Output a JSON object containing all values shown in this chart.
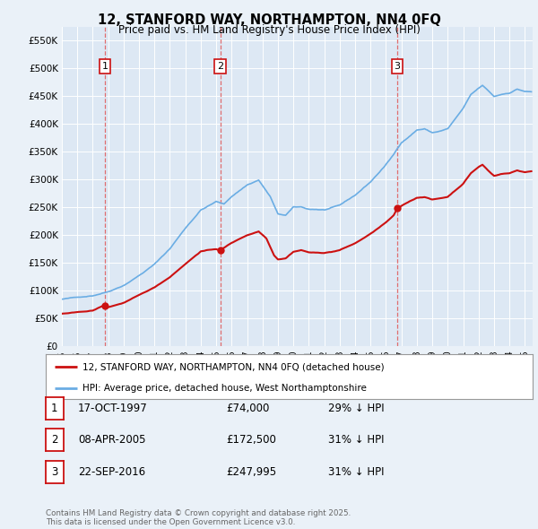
{
  "title": "12, STANFORD WAY, NORTHAMPTON, NN4 0FQ",
  "subtitle": "Price paid vs. HM Land Registry's House Price Index (HPI)",
  "ylabel_ticks": [
    "£0",
    "£50K",
    "£100K",
    "£150K",
    "£200K",
    "£250K",
    "£300K",
    "£350K",
    "£400K",
    "£450K",
    "£500K",
    "£550K"
  ],
  "ytick_vals": [
    0,
    50000,
    100000,
    150000,
    200000,
    250000,
    300000,
    350000,
    400000,
    450000,
    500000,
    550000
  ],
  "ylim": [
    0,
    575000
  ],
  "xlim_start": 1995.0,
  "xlim_end": 2025.5,
  "background_color": "#eaf1f8",
  "plot_bg_color": "#dde8f4",
  "grid_color": "#c8d8ea",
  "legend_label_red": "12, STANFORD WAY, NORTHAMPTON, NN4 0FQ (detached house)",
  "legend_label_blue": "HPI: Average price, detached house, West Northamptonshire",
  "footer": "Contains HM Land Registry data © Crown copyright and database right 2025.\nThis data is licensed under the Open Government Licence v3.0.",
  "transactions": [
    {
      "num": 1,
      "date": "17-OCT-1997",
      "price": 74000,
      "hpi_diff": "29% ↓ HPI",
      "x": 1997.79
    },
    {
      "num": 2,
      "date": "08-APR-2005",
      "price": 172500,
      "hpi_diff": "31% ↓ HPI",
      "x": 2005.27
    },
    {
      "num": 3,
      "date": "22-SEP-2016",
      "price": 247995,
      "hpi_diff": "31% ↓ HPI",
      "x": 2016.72
    }
  ],
  "hpi_color": "#6aade4",
  "red_color": "#cc1111",
  "vline_color": "#e06060",
  "box_edge_color": "#cc1111",
  "figure_bg": "#eaf1f8"
}
